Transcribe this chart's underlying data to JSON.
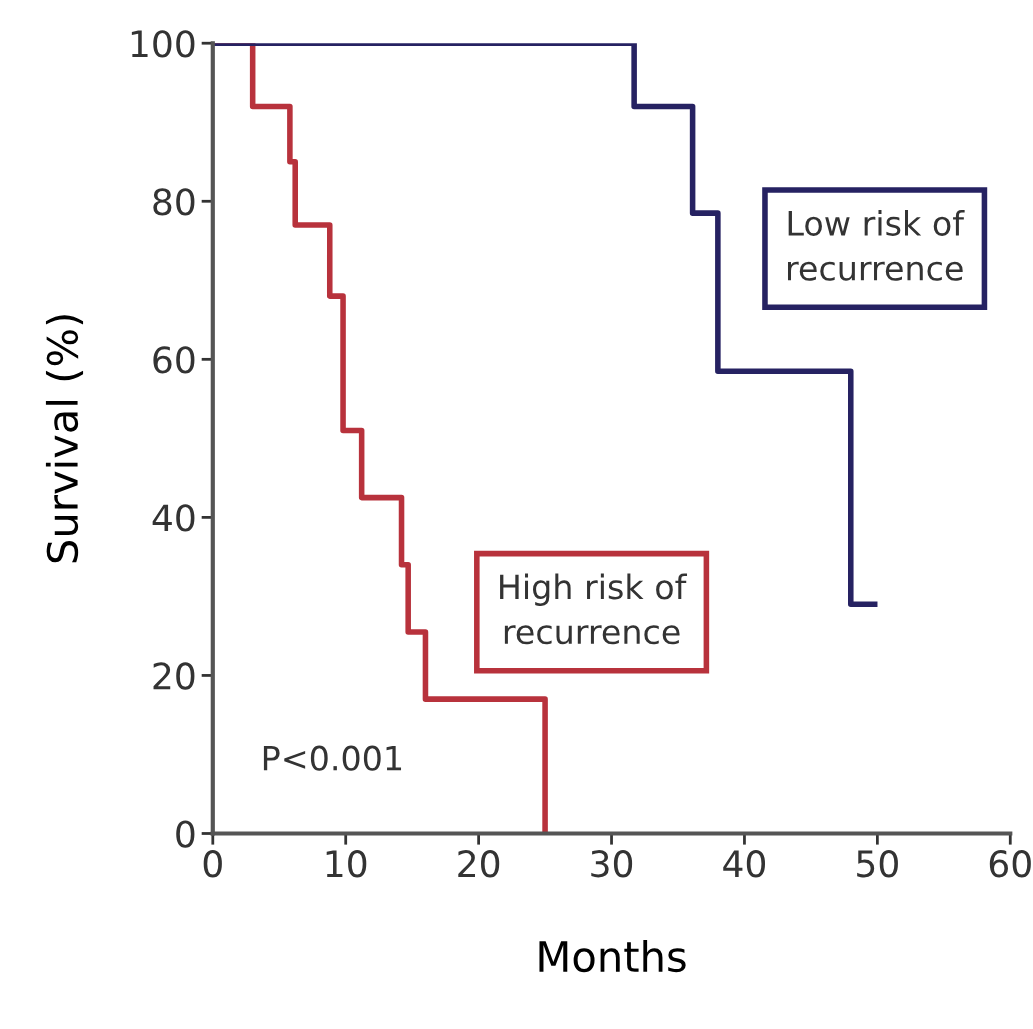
{
  "chart_data": {
    "type": "step",
    "xlabel": "Months",
    "ylabel": "Survival (%)",
    "series": [
      {
        "name": "High risk of\nrecurrence",
        "color": "#b8323c",
        "x": [
          0,
          3,
          5.8,
          6.2,
          8.8,
          9.8,
          11.2,
          14.2,
          14.7,
          16,
          25
        ],
        "values": [
          100,
          92,
          85,
          77,
          68,
          51,
          42.5,
          34,
          25.5,
          17,
          0
        ]
      },
      {
        "name": "Low risk of\nrecurrence",
        "color": "#262262",
        "x": [
          0,
          31.7,
          36.1,
          38,
          48,
          49.8
        ],
        "values": [
          100,
          92,
          78.5,
          58.5,
          29,
          29
        ]
      }
    ],
    "annotations": [
      "P<0.001"
    ],
    "xlim": [
      0,
      60
    ],
    "xticks": [
      0,
      10,
      20,
      30,
      40,
      50,
      60
    ],
    "ylim": [
      0,
      100
    ],
    "yticks": [
      0,
      20,
      40,
      60,
      80,
      100
    ],
    "grid": false,
    "legend": false
  }
}
